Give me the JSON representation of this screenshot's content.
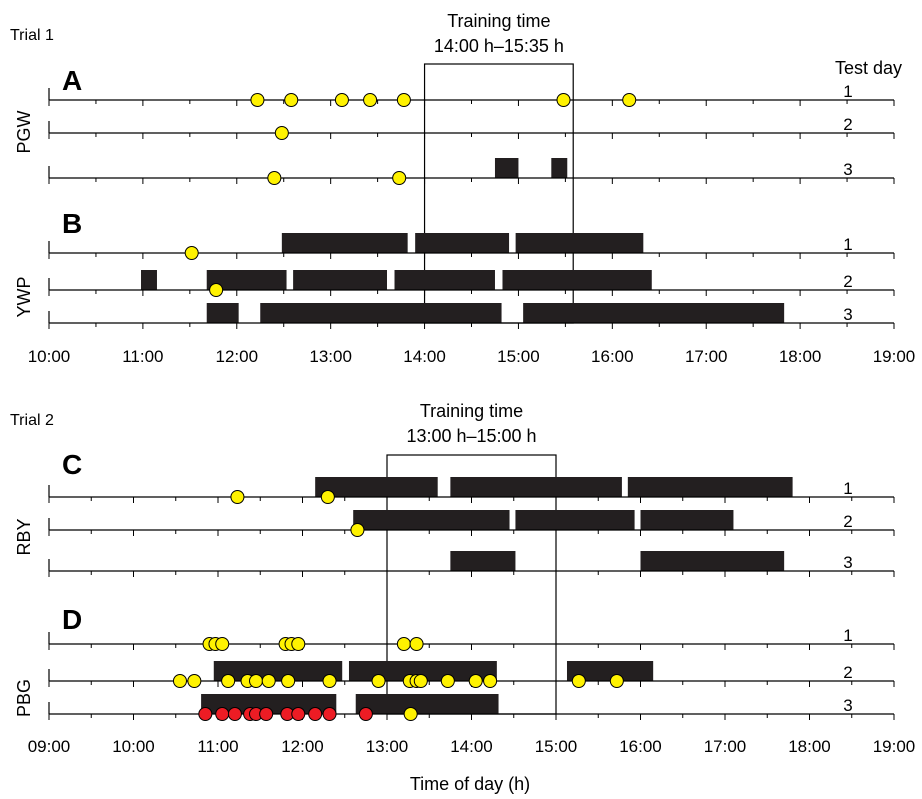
{
  "chart_data": {
    "type": "timeline",
    "xlabel": "Time of day (h)",
    "trials": [
      {
        "label": "Trial 1",
        "training": {
          "label_line1": "Training time",
          "label_line2": "14:00 h–15:35 h",
          "start": 14.0,
          "end": 15.5833
        },
        "test_day_header": "Test day",
        "xaxis": {
          "start": 10,
          "end": 19,
          "ticks": [
            "10:00",
            "11:00",
            "12:00",
            "13:00",
            "14:00",
            "15:00",
            "16:00",
            "17:00",
            "18:00",
            "19:00"
          ]
        },
        "panels": [
          {
            "letter": "A",
            "subject": "PGW",
            "rows": [
              {
                "day": "1",
                "bars": [],
                "yellow": [
                  12.22,
                  12.58,
                  13.12,
                  13.42,
                  13.78,
                  15.48,
                  16.18
                ],
                "red": []
              },
              {
                "day": "2",
                "bars": [],
                "yellow": [
                  12.48
                ],
                "red": []
              },
              {
                "day": "3",
                "bars": [
                  [
                    14.75,
                    15.0
                  ],
                  [
                    15.35,
                    15.52
                  ]
                ],
                "yellow": [
                  12.4,
                  13.73
                ],
                "red": []
              }
            ]
          },
          {
            "letter": "B",
            "subject": "YWP",
            "rows": [
              {
                "day": "1",
                "bars": [
                  [
                    12.48,
                    13.82
                  ],
                  [
                    13.9,
                    14.9
                  ],
                  [
                    14.97,
                    16.33
                  ]
                ],
                "yellow": [
                  11.52
                ],
                "red": []
              },
              {
                "day": "2",
                "bars": [
                  [
                    10.98,
                    11.15
                  ],
                  [
                    11.68,
                    12.53
                  ],
                  [
                    12.6,
                    13.6
                  ],
                  [
                    13.68,
                    14.75
                  ],
                  [
                    14.83,
                    16.42
                  ]
                ],
                "yellow": [
                  11.78
                ],
                "red": []
              },
              {
                "day": "3",
                "bars": [
                  [
                    11.68,
                    12.02
                  ],
                  [
                    12.25,
                    14.82
                  ],
                  [
                    15.05,
                    17.83
                  ]
                ],
                "yellow": [],
                "red": []
              }
            ]
          }
        ]
      },
      {
        "label": "Trial 2",
        "training": {
          "label_line1": "Training time",
          "label_line2": "13:00 h–15:00 h",
          "start": 13.0,
          "end": 15.0
        },
        "test_day_header": "",
        "xaxis": {
          "start": 9,
          "end": 19,
          "ticks": [
            "09:00",
            "10:00",
            "11:00",
            "12:00",
            "13:00",
            "14:00",
            "15:00",
            "16:00",
            "17:00",
            "18:00",
            "19:00"
          ]
        },
        "panels": [
          {
            "letter": "C",
            "subject": "RBY",
            "rows": [
              {
                "day": "1",
                "bars": [
                  [
                    12.15,
                    13.6
                  ],
                  [
                    13.75,
                    15.78
                  ],
                  [
                    15.85,
                    17.8
                  ]
                ],
                "yellow": [
                  11.23,
                  12.3
                ],
                "red": []
              },
              {
                "day": "2",
                "bars": [
                  [
                    12.6,
                    14.45
                  ],
                  [
                    14.52,
                    15.93
                  ],
                  [
                    16.0,
                    17.1
                  ]
                ],
                "yellow": [
                  12.65
                ],
                "red": []
              },
              {
                "day": "3",
                "bars": [
                  [
                    13.75,
                    14.52
                  ],
                  [
                    16.0,
                    17.7
                  ]
                ],
                "yellow": [],
                "red": []
              }
            ]
          },
          {
            "letter": "D",
            "subject": "PBG",
            "rows": [
              {
                "day": "1",
                "bars": [],
                "yellow": [
                  10.9,
                  10.97,
                  11.05,
                  11.8,
                  11.87,
                  11.95,
                  13.2,
                  13.35
                ],
                "red": []
              },
              {
                "day": "2",
                "bars": [
                  [
                    10.95,
                    12.47
                  ],
                  [
                    12.55,
                    14.3
                  ],
                  [
                    15.13,
                    16.15
                  ]
                ],
                "yellow": [
                  10.55,
                  10.72,
                  11.12,
                  11.35,
                  11.45,
                  11.6,
                  11.83,
                  12.32,
                  12.9,
                  13.27,
                  13.35,
                  13.4,
                  13.72,
                  14.05,
                  14.22,
                  15.27,
                  15.72
                ],
                "red": []
              },
              {
                "day": "3",
                "bars": [
                  [
                    10.8,
                    12.4
                  ],
                  [
                    12.63,
                    14.32
                  ]
                ],
                "yellow": [
                  13.28
                ],
                "red": [
                  10.85,
                  11.05,
                  11.2,
                  11.38,
                  11.45,
                  11.57,
                  11.82,
                  11.95,
                  12.15,
                  12.32,
                  12.75
                ]
              }
            ]
          }
        ]
      }
    ]
  },
  "colors": {
    "yellow": "#FFF200",
    "red": "#ED1C24",
    "bar": "#231F20",
    "line": "#000000"
  }
}
